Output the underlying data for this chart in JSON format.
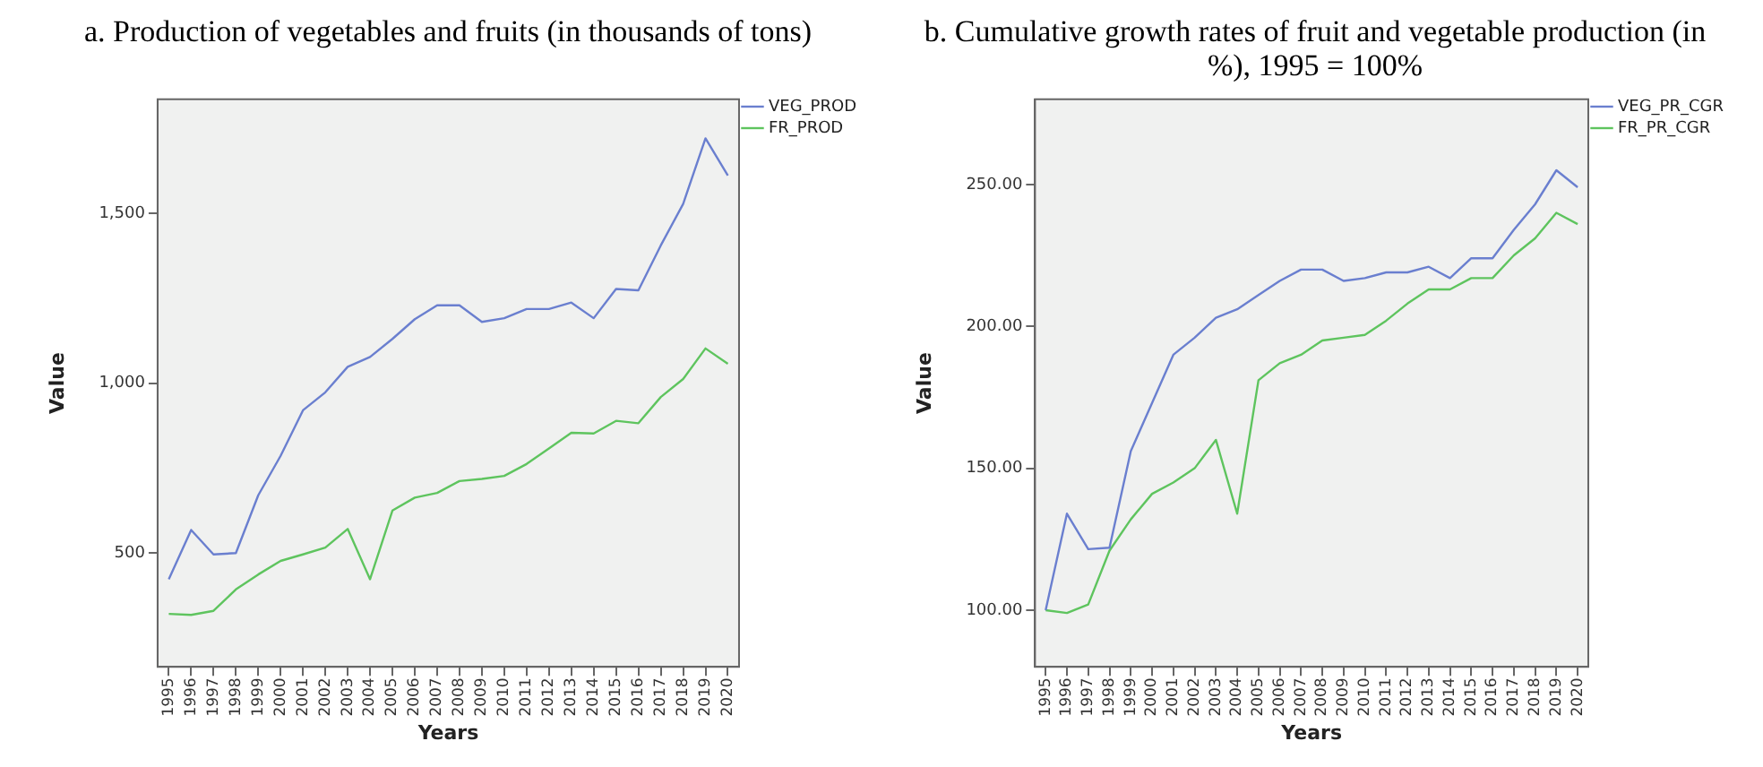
{
  "chart_data": [
    {
      "type": "line",
      "title": "a. Production of vegetables and fruits (in thousands of tons)",
      "xlabel": "Years",
      "ylabel": "Value",
      "categories": [
        "1995",
        "1996",
        "1997",
        "1998",
        "1999",
        "2000",
        "2001",
        "2002",
        "2003",
        "2004",
        "2005",
        "2006",
        "2007",
        "2008",
        "2009",
        "2010",
        "2011",
        "2012",
        "2013",
        "2014",
        "2015",
        "2016",
        "2017",
        "2018",
        "2019",
        "2020"
      ],
      "series": [
        {
          "name": "VEG_PROD",
          "color": "#6a7fcf",
          "values": [
            423,
            568,
            496,
            500,
            670,
            786,
            920,
            973,
            1048,
            1077,
            1130,
            1188,
            1229,
            1229,
            1180,
            1191,
            1218,
            1218,
            1237,
            1191,
            1277,
            1273,
            1405,
            1527,
            1720,
            1611
          ]
        },
        {
          "name": "FR_PROD",
          "color": "#5ec45e",
          "values": [
            321,
            318,
            330,
            393,
            437,
            477,
            496,
            516,
            571,
            423,
            625,
            663,
            677,
            712,
            718,
            727,
            762,
            808,
            854,
            852,
            889,
            882,
            959,
            1012,
            1102,
            1057
          ]
        }
      ],
      "ylim": [
        165,
        1835
      ],
      "yticks": [
        {
          "value": 500,
          "label": "500"
        },
        {
          "value": 1000,
          "label": "1,000"
        },
        {
          "value": 1500,
          "label": "1,500"
        }
      ],
      "grid": false,
      "legend": "top right",
      "marker": "none",
      "line_style": "solid"
    },
    {
      "type": "line",
      "title": "b. Cumulative growth rates of fruit and vegetable production (in %), 1995 = 100%",
      "xlabel": "Years",
      "ylabel": "Value",
      "categories": [
        "1995",
        "1996",
        "1997",
        "1998",
        "1999",
        "2000",
        "2001",
        "2002",
        "2003",
        "2004",
        "2005",
        "2006",
        "2007",
        "2008",
        "2009",
        "2010",
        "2011",
        "2012",
        "2013",
        "2014",
        "2015",
        "2016",
        "2017",
        "2018",
        "2019",
        "2020"
      ],
      "series": [
        {
          "name": "VEG_PR_CGR",
          "color": "#6a7fcf",
          "values": [
            100,
            134,
            121.5,
            122,
            156,
            173,
            190,
            196,
            203,
            206,
            211,
            216,
            220,
            220,
            216,
            217,
            219,
            219,
            221,
            217,
            224,
            224,
            234,
            243,
            255,
            249
          ]
        },
        {
          "name": "FR_PR_CGR",
          "color": "#5ec45e",
          "values": [
            100,
            99,
            102,
            121,
            132,
            141,
            145,
            150,
            160,
            134,
            181,
            187,
            190,
            195,
            196,
            197,
            202,
            208,
            213,
            213,
            217,
            217,
            225,
            231,
            240,
            236
          ]
        }
      ],
      "ylim": [
        80,
        280
      ],
      "yticks": [
        {
          "value": 100,
          "label": "100.00"
        },
        {
          "value": 150,
          "label": "150.00"
        },
        {
          "value": 200,
          "label": "200.00"
        },
        {
          "value": 250,
          "label": "250.00"
        }
      ],
      "grid": false,
      "legend": "top right",
      "marker": "none",
      "line_style": "solid"
    }
  ]
}
